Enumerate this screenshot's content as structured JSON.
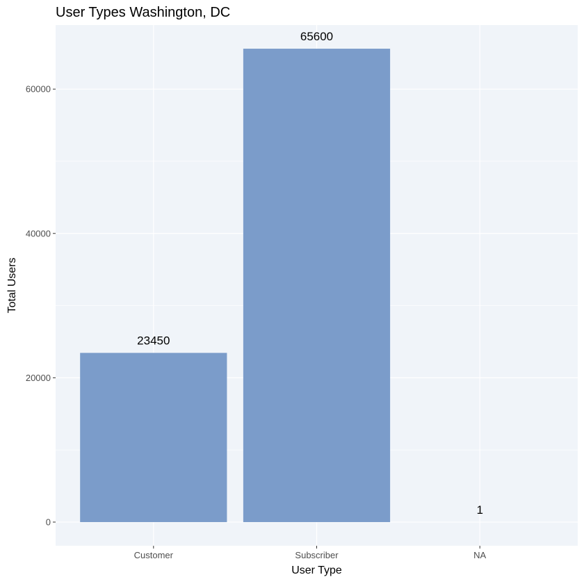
{
  "chart_data": {
    "type": "bar",
    "title": "User Types Washington, DC",
    "xlabel": "User Type",
    "ylabel": "Total Users",
    "categories": [
      "Customer",
      "Subscriber",
      "NA"
    ],
    "values": [
      23450,
      65600,
      1
    ],
    "data_labels": [
      "23450",
      "65600",
      "1"
    ],
    "ylim": [
      -3280,
      68880
    ],
    "yticks": [
      0,
      20000,
      40000,
      60000
    ],
    "ytick_labels": [
      "0",
      "20000",
      "40000",
      "60000"
    ],
    "grid": true,
    "legend": "none",
    "colors": {
      "bar": "#7b9cca",
      "panel": "#f0f4f9",
      "grid": "#ffffff",
      "tick_text": "#4d4d4d"
    }
  }
}
